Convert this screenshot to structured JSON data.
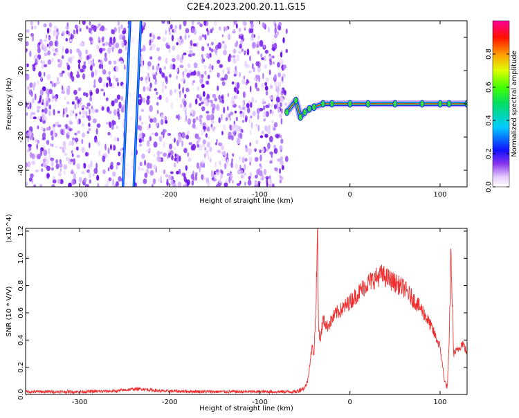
{
  "title": "C2E4.2023.200.20.11.G15",
  "spectrogram": {
    "xlabel": "Height of straight line (km)",
    "ylabel": "Frequency (Hz)",
    "xlim": [
      -360,
      130
    ],
    "ylim": [
      -50,
      50
    ],
    "xticks": [
      "-300",
      "-200",
      "-100",
      "0",
      "100"
    ],
    "yticks": [
      "40",
      "20",
      "0",
      "-20",
      "-40"
    ]
  },
  "colorbar": {
    "label": "Normalized spectral amplitude",
    "range": [
      0,
      1
    ],
    "ticks": [
      "0.0",
      "0.2",
      "0.4",
      "0.6",
      "0.8"
    ]
  },
  "chart_data": [
    {
      "type": "heatmap",
      "title": "C2E4.2023.200.20.11.G15",
      "xlabel": "Height of straight line (km)",
      "ylabel": "Frequency (Hz)",
      "xlim": [
        -360,
        130
      ],
      "ylim": [
        -50,
        50
      ],
      "colorbar": {
        "label": "Normalized spectral amplitude",
        "range": [
          0,
          1
        ]
      },
      "features": {
        "noise_region_x": [
          -360,
          -70
        ],
        "diagonal_line_1": {
          "x": [
            -252,
            -244
          ],
          "y": [
            -50,
            50
          ]
        },
        "diagonal_line_2": {
          "x": [
            -240,
            -232
          ],
          "y": [
            -50,
            50
          ]
        },
        "signal_line": {
          "x": [
            -70,
            -60,
            -55,
            -50,
            -45,
            -40,
            -30,
            -20,
            0,
            20,
            50,
            80,
            100,
            110,
            130
          ],
          "y": [
            -5,
            2,
            -8,
            -5,
            -3,
            -2,
            0,
            0,
            0,
            0,
            0,
            0,
            0,
            0,
            0
          ]
        }
      }
    },
    {
      "type": "line",
      "xlabel": "Height of straight line (km)",
      "ylabel": "SNR (10 * V/V)",
      "y_multiplier": "(x10^4)",
      "xlim": [
        -360,
        130
      ],
      "ylim": [
        0,
        1.22
      ],
      "yticks": [
        "0.0",
        "0.2",
        "0.4",
        "0.6",
        "0.8",
        "1.0",
        "1.2"
      ],
      "series": [
        {
          "color": "#ee3030",
          "x": [
            -360,
            -300,
            -260,
            -240,
            -230,
            -210,
            -150,
            -100,
            -60,
            -50,
            -47,
            -42,
            -40,
            -38,
            -36,
            -35,
            -33,
            -30,
            -25,
            -20,
            -15,
            -10,
            -5,
            0,
            10,
            20,
            30,
            35,
            40,
            50,
            60,
            70,
            80,
            90,
            100,
            105,
            108,
            110,
            112,
            115,
            120,
            125,
            130
          ],
          "y": [
            0.02,
            0.02,
            0.025,
            0.04,
            0.04,
            0.025,
            0.02,
            0.02,
            0.02,
            0.05,
            0.1,
            0.35,
            0.3,
            0.6,
            1.22,
            0.5,
            0.4,
            0.55,
            0.5,
            0.55,
            0.6,
            0.62,
            0.65,
            0.68,
            0.75,
            0.82,
            0.86,
            0.88,
            0.86,
            0.82,
            0.78,
            0.7,
            0.62,
            0.5,
            0.35,
            0.1,
            0.05,
            0.35,
            1.05,
            0.3,
            0.33,
            0.38,
            0.3
          ]
        }
      ]
    }
  ]
}
